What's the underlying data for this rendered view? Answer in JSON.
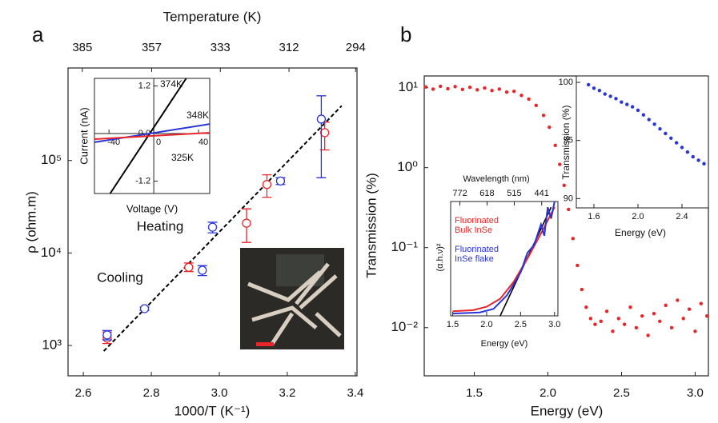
{
  "chart_data": [
    {
      "type": "scatter",
      "panel_label": "a",
      "xlabel": "1000/T (K⁻¹)",
      "ylabel": "ρ (ohm.m)",
      "x2label": "Temperature (K)",
      "xlim": [
        2.555,
        3.405
      ],
      "xticks": [
        2.6,
        2.8,
        {
          "value": 3,
          "label": "3.0"
        },
        3.2,
        3.4
      ],
      "x2ticks": [
        {
          "value": 2.597,
          "label": "385"
        },
        {
          "value": 2.801,
          "label": "357"
        },
        {
          "value": 3.003,
          "label": "333"
        },
        {
          "value": 3.205,
          "label": "312"
        },
        {
          "value": 3.401,
          "label": "294"
        }
      ],
      "ylog": true,
      "ylim": [
        470,
        1000000
      ],
      "yticks": [
        {
          "value": 1000,
          "label": "10³"
        },
        {
          "value": 10000,
          "label": "10⁴"
        },
        {
          "value": 100000,
          "label": "10⁵"
        }
      ],
      "series": [
        {
          "name": "Heating",
          "color": "#e8262a",
          "marker": "open-circle",
          "x": [
            2.67,
            2.91,
            3.08,
            3.14,
            3.31
          ],
          "values": [
            1200,
            7000,
            21000,
            55000,
            200000
          ],
          "ylow": [
            1050,
            6300,
            13000,
            40000,
            130000
          ],
          "yhigh": [
            1400,
            7800,
            30000,
            70000,
            260000
          ]
        },
        {
          "name": "Cooling",
          "color": "#2b35d6",
          "marker": "open-circle",
          "x": [
            2.67,
            2.78,
            2.95,
            2.98,
            3.18,
            3.3
          ],
          "values": [
            1300,
            2500,
            6500,
            19000,
            60000,
            280000
          ],
          "ylow": [
            1150,
            2400,
            5700,
            16500,
            55000,
            65000
          ],
          "yhigh": [
            1450,
            2600,
            7300,
            21500,
            65000,
            500000
          ]
        }
      ],
      "fit": {
        "color": "#000000",
        "x": [
          2.66,
          3.36
        ],
        "values": [
          870,
          390000
        ]
      }
    },
    {
      "type": "line",
      "xlabel": "Voltage (V)",
      "ylabel": "Current (nA)",
      "xlim": [
        -53,
        50
      ],
      "xticks": [
        -40,
        0,
        40
      ],
      "ylim": [
        -1.51,
        1.39
      ],
      "yticks": [
        1.2,
        {
          "value": 0,
          "label": "0.0"
        },
        -1.2
      ],
      "series": [
        {
          "name": "374K",
          "color": "#000000",
          "x": [
            -39,
            29
          ],
          "values": [
            -1.51,
            1.39
          ]
        },
        {
          "name": "348K",
          "color": "#2b35d6",
          "x": [
            -53,
            50
          ],
          "values": [
            -0.22,
            0.24
          ]
        },
        {
          "name": "325K",
          "color": "#e8262a",
          "x": [
            -53,
            50
          ],
          "values": [
            -0.14,
            0.02
          ]
        }
      ]
    },
    {
      "type": "scatter",
      "panel_label": "b",
      "xlabel": "Energy (eV)",
      "ylabel": "Transmission (%)",
      "xlim": [
        1.16,
        3.09
      ],
      "xticks": [
        1.5,
        {
          "value": 2,
          "label": "2.0"
        },
        2.5,
        {
          "value": 3,
          "label": "3.0"
        }
      ],
      "ylog": true,
      "ylim": [
        0.0025,
        14
      ],
      "yticks": [
        {
          "value": 10,
          "label": "10¹"
        },
        {
          "value": 1,
          "label": "10⁰"
        },
        {
          "value": 0.1,
          "label": "10⁻¹"
        },
        {
          "value": 0.01,
          "label": "10⁻²"
        }
      ],
      "series": [
        {
          "color": "#e8262a",
          "marker": "dot",
          "x": [
            1.17,
            1.22,
            1.27,
            1.32,
            1.37,
            1.42,
            1.47,
            1.52,
            1.57,
            1.62,
            1.67,
            1.72,
            1.77,
            1.82,
            1.87,
            1.92,
            1.97,
            2.01,
            2.05,
            2.08,
            2.11,
            2.14,
            2.17,
            2.2,
            2.23,
            2.26,
            2.29,
            2.32,
            2.36,
            2.4,
            2.44,
            2.48,
            2.52,
            2.56,
            2.6,
            2.64,
            2.68,
            2.72,
            2.76,
            2.8,
            2.84,
            2.88,
            2.92,
            2.96,
            3.0,
            3.04,
            3.08
          ],
          "values": [
            10.2,
            9.6,
            10.4,
            9.7,
            10.3,
            9.5,
            10.1,
            9.4,
            9.9,
            9.2,
            9.6,
            8.8,
            9.0,
            8.0,
            7.2,
            6.0,
            4.5,
            3.2,
            1.9,
            1.1,
            0.6,
            0.3,
            0.13,
            0.06,
            0.03,
            0.018,
            0.013,
            0.011,
            0.012,
            0.016,
            0.009,
            0.013,
            0.011,
            0.018,
            0.01,
            0.014,
            0.008,
            0.015,
            0.012,
            0.019,
            0.01,
            0.022,
            0.013,
            0.017,
            0.009,
            0.02,
            0.014
          ]
        }
      ]
    },
    {
      "type": "scatter",
      "xlabel": "Energy (eV)",
      "ylabel": "Transmission  (%)",
      "xlim": [
        1.44,
        2.64
      ],
      "xticks": [
        1.6,
        {
          "value": 2,
          "label": "2.0"
        },
        2.4
      ],
      "ylim": [
        89.2,
        100.55
      ],
      "yticks": [
        90,
        95,
        100
      ],
      "series": [
        {
          "color": "#2b35d6",
          "marker": "dot",
          "x": [
            1.55,
            1.6,
            1.65,
            1.7,
            1.75,
            1.8,
            1.85,
            1.9,
            1.95,
            2.0,
            2.05,
            2.1,
            2.15,
            2.2,
            2.25,
            2.3,
            2.35,
            2.4,
            2.45,
            2.5,
            2.55,
            2.6
          ],
          "values": [
            99.8,
            99.5,
            99.3,
            99.0,
            98.8,
            98.6,
            98.3,
            98.1,
            97.9,
            97.6,
            97.2,
            96.8,
            96.4,
            96.0,
            95.6,
            95.2,
            94.8,
            94.4,
            94.0,
            93.6,
            93.3,
            93.0
          ]
        }
      ]
    },
    {
      "type": "line",
      "xlabel": "Energy (eV)",
      "x2label": "Wavelength  (nm)",
      "ylabel": "(α.h.ν)²",
      "xlim": [
        1.47,
        3.05
      ],
      "xticks": [
        1.5,
        {
          "value": 2,
          "label": "2.0"
        },
        2.5,
        {
          "value": 3,
          "label": "3.0"
        }
      ],
      "x2ticks": [
        {
          "value": 1.606,
          "label": "772"
        },
        {
          "value": 2.006,
          "label": "618"
        },
        {
          "value": 2.407,
          "label": "515"
        },
        {
          "value": 2.811,
          "label": "441"
        }
      ],
      "ylim": [
        0,
        1
      ],
      "series": [
        {
          "name": "Fluorinated Bulk InSe",
          "color": "#e8262a",
          "x": [
            1.5,
            1.8,
            2.0,
            2.2,
            2.4,
            2.6,
            2.8,
            3.0
          ],
          "values": [
            0.04,
            0.05,
            0.08,
            0.15,
            0.3,
            0.5,
            0.72,
            0.95
          ]
        },
        {
          "name": "Fluorinated InSe flake",
          "color": "#2b35d6",
          "x": [
            1.5,
            1.9,
            2.1,
            2.3,
            2.5,
            2.6,
            2.7,
            2.8,
            2.85,
            2.9,
            2.95,
            3.0
          ],
          "values": [
            0.02,
            0.03,
            0.06,
            0.18,
            0.38,
            0.55,
            0.62,
            0.8,
            0.7,
            0.95,
            0.85,
            1.0
          ]
        }
      ],
      "fit": {
        "color": "#000000",
        "x": [
          2.2,
          2.95
        ],
        "values": [
          0,
          0.95
        ]
      }
    }
  ]
}
